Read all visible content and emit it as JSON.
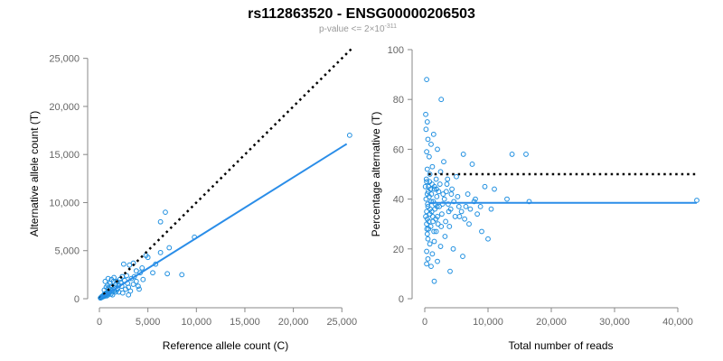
{
  "chart_data": {
    "title": "rs112863520 - ENSG00000206503",
    "subtitle": "p-value <= 2×10",
    "subtitle_exponent": "-311",
    "panels": [
      {
        "type": "scatter",
        "xlabel": "Reference allele count (C)",
        "ylabel": "Alternative allele count (T)",
        "xlim": [
          0,
          26000
        ],
        "ylim": [
          0,
          26000
        ],
        "xticks": [
          0,
          5000,
          10000,
          15000,
          20000,
          25000
        ],
        "xtick_labels": [
          "0",
          "5,000",
          "10,000",
          "15,000",
          "20,000",
          "25,000"
        ],
        "yticks": [
          0,
          5000,
          10000,
          15000,
          20000,
          25000
        ],
        "ytick_labels": [
          "0",
          "5,000",
          "10,000",
          "15,000",
          "20,000",
          "25,000"
        ],
        "fit_line": {
          "from": [
            0,
            0
          ],
          "to": [
            25500,
            16100
          ]
        },
        "reference_line": {
          "from": [
            0,
            0
          ],
          "to": [
            26000,
            26000
          ]
        },
        "points": [
          [
            25800,
            17000
          ],
          [
            9800,
            6400
          ],
          [
            6800,
            9000
          ],
          [
            6300,
            8000
          ],
          [
            7200,
            5300
          ],
          [
            8500,
            2500
          ],
          [
            7000,
            2600
          ],
          [
            5000,
            4300
          ],
          [
            4800,
            4500
          ],
          [
            6300,
            4800
          ],
          [
            5800,
            3600
          ],
          [
            5500,
            2700
          ],
          [
            3500,
            3700
          ],
          [
            3100,
            3500
          ],
          [
            2500,
            3600
          ],
          [
            4200,
            2700
          ],
          [
            4500,
            2000
          ],
          [
            3800,
            1800
          ],
          [
            3500,
            1500
          ],
          [
            3000,
            1200
          ],
          [
            2800,
            2400
          ],
          [
            2600,
            1900
          ],
          [
            2300,
            1300
          ],
          [
            2100,
            2000
          ],
          [
            2000,
            1400
          ],
          [
            1900,
            1100
          ],
          [
            1800,
            900
          ],
          [
            1700,
            1500
          ],
          [
            1600,
            1200
          ],
          [
            1500,
            800
          ],
          [
            1400,
            1000
          ],
          [
            1300,
            700
          ],
          [
            1250,
            1300
          ],
          [
            1200,
            500
          ],
          [
            1100,
            900
          ],
          [
            1000,
            600
          ],
          [
            950,
            1100
          ],
          [
            900,
            400
          ],
          [
            850,
            700
          ],
          [
            800,
            500
          ],
          [
            750,
            300
          ],
          [
            700,
            600
          ],
          [
            650,
            450
          ],
          [
            600,
            350
          ],
          [
            550,
            500
          ],
          [
            500,
            250
          ],
          [
            450,
            400
          ],
          [
            400,
            300
          ],
          [
            350,
            200
          ],
          [
            300,
            250
          ],
          [
            250,
            150
          ],
          [
            200,
            180
          ],
          [
            150,
            100
          ],
          [
            100,
            80
          ],
          [
            1500,
            2200
          ],
          [
            2200,
            1700
          ],
          [
            3300,
            2100
          ],
          [
            2700,
            1000
          ],
          [
            4000,
            1300
          ],
          [
            900,
            2100
          ],
          [
            600,
            1800
          ],
          [
            1100,
            1600
          ],
          [
            1350,
            400
          ],
          [
            2400,
            600
          ],
          [
            3200,
            800
          ],
          [
            1800,
            1800
          ],
          [
            2000,
            700
          ],
          [
            2900,
            1600
          ],
          [
            3600,
            2300
          ],
          [
            4100,
            1000
          ],
          [
            700,
            1200
          ],
          [
            1250,
            2000
          ],
          [
            1650,
            700
          ],
          [
            2350,
            2300
          ],
          [
            3000,
            400
          ],
          [
            3800,
            2900
          ],
          [
            4400,
            3200
          ],
          [
            1450,
            1800
          ],
          [
            850,
            1400
          ],
          [
            500,
            900
          ]
        ]
      },
      {
        "type": "scatter",
        "xlabel": "Total number of reads",
        "ylabel": "Percentage alternative (T)",
        "xlim": [
          0,
          43000
        ],
        "ylim": [
          0,
          100
        ],
        "xticks": [
          0,
          10000,
          20000,
          30000,
          40000
        ],
        "xtick_labels": [
          "0",
          "10,000",
          "20,000",
          "30,000",
          "40,000"
        ],
        "yticks": [
          0,
          20,
          40,
          60,
          80,
          100
        ],
        "ytick_labels": [
          "0",
          "20",
          "40",
          "60",
          "80",
          "100"
        ],
        "fit_line": {
          "from": [
            600,
            38.5
          ],
          "to": [
            43000,
            38.5
          ]
        },
        "reference_line": {
          "from": [
            600,
            50
          ],
          "to": [
            43000,
            50
          ]
        },
        "points": [
          [
            300,
            88
          ],
          [
            2600,
            80
          ],
          [
            150,
            74
          ],
          [
            400,
            71
          ],
          [
            200,
            68
          ],
          [
            1400,
            66
          ],
          [
            500,
            64
          ],
          [
            1000,
            62
          ],
          [
            2000,
            60
          ],
          [
            300,
            59
          ],
          [
            700,
            57
          ],
          [
            6100,
            58
          ],
          [
            13800,
            58
          ],
          [
            16000,
            58
          ],
          [
            7500,
            54
          ],
          [
            3000,
            55
          ],
          [
            1200,
            53
          ],
          [
            400,
            52
          ],
          [
            2500,
            51
          ],
          [
            800,
            50
          ],
          [
            5000,
            49
          ],
          [
            1800,
            48
          ],
          [
            300,
            47
          ],
          [
            3500,
            46
          ],
          [
            600,
            45
          ],
          [
            9500,
            45
          ],
          [
            11000,
            44
          ],
          [
            1500,
            44
          ],
          [
            2200,
            43
          ],
          [
            400,
            42
          ],
          [
            4200,
            42
          ],
          [
            700,
            41
          ],
          [
            13000,
            40
          ],
          [
            8000,
            40
          ],
          [
            16500,
            39
          ],
          [
            43000,
            39.5
          ],
          [
            1000,
            39
          ],
          [
            2800,
            38
          ],
          [
            500,
            37
          ],
          [
            6500,
            37
          ],
          [
            10500,
            36
          ],
          [
            1600,
            36
          ],
          [
            300,
            35
          ],
          [
            3800,
            35
          ],
          [
            800,
            34
          ],
          [
            5500,
            33
          ],
          [
            2000,
            33
          ],
          [
            400,
            32
          ],
          [
            1300,
            31
          ],
          [
            7000,
            30
          ],
          [
            300,
            30
          ],
          [
            2600,
            29
          ],
          [
            600,
            28
          ],
          [
            9000,
            27
          ],
          [
            1800,
            27
          ],
          [
            400,
            26
          ],
          [
            3200,
            25
          ],
          [
            10000,
            24
          ],
          [
            500,
            24
          ],
          [
            1500,
            23
          ],
          [
            800,
            22
          ],
          [
            2500,
            21
          ],
          [
            4500,
            20
          ],
          [
            300,
            19
          ],
          [
            1200,
            18
          ],
          [
            6000,
            17
          ],
          [
            500,
            16
          ],
          [
            2000,
            15
          ],
          [
            300,
            14
          ],
          [
            1000,
            13
          ],
          [
            4000,
            11
          ],
          [
            1500,
            7
          ],
          [
            200,
            40
          ],
          [
            900,
            44
          ],
          [
            1100,
            35
          ],
          [
            1900,
            41
          ],
          [
            2300,
            37
          ],
          [
            2700,
            34
          ],
          [
            3100,
            40
          ],
          [
            3400,
            43
          ],
          [
            3700,
            38
          ],
          [
            4100,
            36
          ],
          [
            4600,
            39
          ],
          [
            5200,
            41
          ],
          [
            5800,
            35
          ],
          [
            6300,
            32
          ],
          [
            7200,
            36
          ],
          [
            8300,
            34
          ],
          [
            100,
            45
          ],
          [
            150,
            33
          ],
          [
            250,
            48
          ],
          [
            350,
            28
          ],
          [
            450,
            38
          ],
          [
            550,
            43
          ],
          [
            650,
            31
          ],
          [
            750,
            47
          ],
          [
            850,
            36
          ],
          [
            950,
            29
          ],
          [
            1050,
            42
          ],
          [
            1150,
            46
          ],
          [
            1250,
            33
          ],
          [
            1350,
            39
          ],
          [
            1450,
            27
          ],
          [
            1550,
            45
          ],
          [
            1650,
            38
          ],
          [
            1750,
            32
          ],
          [
            1850,
            44
          ],
          [
            1950,
            37
          ],
          [
            2100,
            30
          ],
          [
            2400,
            46
          ],
          [
            2900,
            42
          ],
          [
            3300,
            31
          ],
          [
            3600,
            48
          ],
          [
            3900,
            29
          ],
          [
            4300,
            44
          ],
          [
            4800,
            33
          ],
          [
            5400,
            37
          ],
          [
            6800,
            42
          ],
          [
            7800,
            39
          ],
          [
            8800,
            37
          ]
        ]
      }
    ]
  }
}
